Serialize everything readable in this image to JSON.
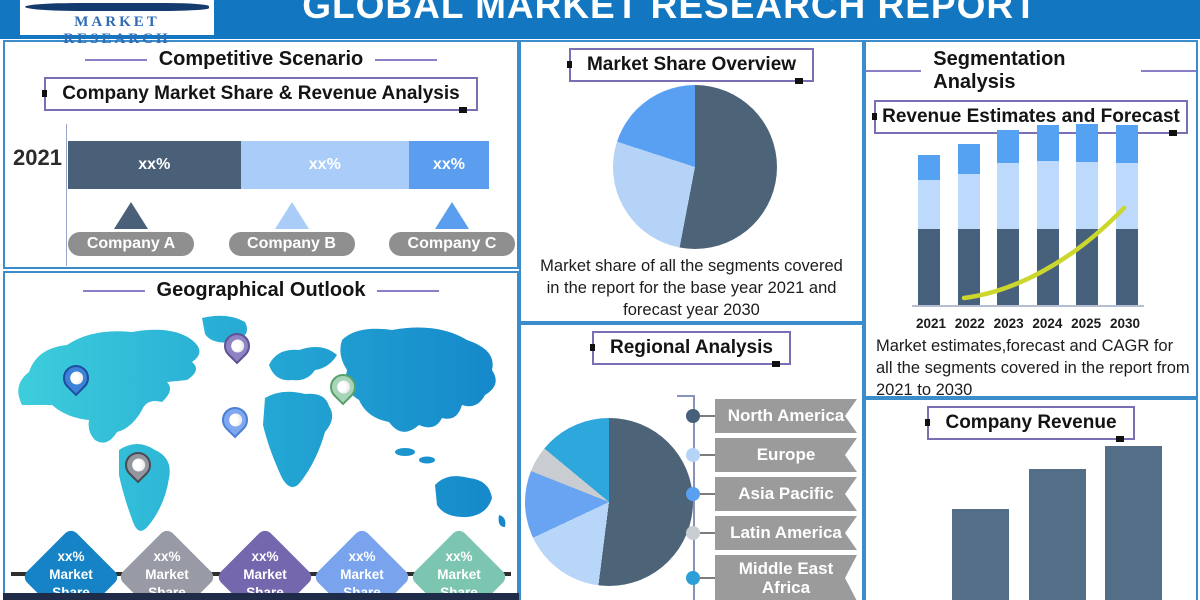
{
  "header": {
    "title": "GLOBAL MARKET RESEARCH REPORT",
    "logo_text": "MARKET RESEARCH"
  },
  "competitive": {
    "title": "Competitive Scenario",
    "subtitle": "Company Market Share & Revenue Analysis",
    "year": "2021",
    "segments": [
      {
        "share_label": "xx%",
        "company": "Company A",
        "color": "#4a5f78",
        "width_pct": 41
      },
      {
        "share_label": "xx%",
        "company": "Company B",
        "color": "#a9cdf8",
        "width_pct": 40
      },
      {
        "share_label": "xx%",
        "company": "Company C",
        "color": "#5b9ef0",
        "width_pct": 19
      }
    ]
  },
  "geographical": {
    "title": "Geographical Outlook",
    "pins": [
      {
        "name": "north-america-pin",
        "color": "#3b82d8",
        "border": "#1d4f9e"
      },
      {
        "name": "europe-pin",
        "color": "#9083c4",
        "border": "#5f5294"
      },
      {
        "name": "middle-east-pin",
        "color": "#7fa8f0",
        "border": "#4a7fd4"
      },
      {
        "name": "asia-pacific-pin",
        "color": "#a8d4b8",
        "border": "#57a06a"
      },
      {
        "name": "latin-america-pin",
        "color": "#9597a0",
        "border": "#4a4a52"
      }
    ],
    "badges": [
      {
        "value": "xx%",
        "label1": "Market",
        "label2": "Share",
        "color": "#1583c5"
      },
      {
        "value": "xx%",
        "label1": "Market",
        "label2": "Share",
        "color": "#989aa5"
      },
      {
        "value": "xx%",
        "label1": "Market",
        "label2": "Share",
        "color": "#7467ad"
      },
      {
        "value": "xx%",
        "label1": "Market",
        "label2": "Share",
        "color": "#7aa3ee"
      },
      {
        "value": "xx%",
        "label1": "Market",
        "label2": "Share",
        "color": "#7cc5b1"
      }
    ]
  },
  "market_share_overview": {
    "title": "Market Share Overview",
    "description": "Market share of all the segments covered in the report for the base year 2021 and forecast year 2030",
    "slices": [
      {
        "value": 53,
        "color": "#4d6378"
      },
      {
        "value": 27,
        "color": "#b5d3f6"
      },
      {
        "value": 20,
        "color": "#5aa0f2"
      }
    ]
  },
  "regional": {
    "title": "Regional Analysis",
    "regions": [
      {
        "label": "North America",
        "dot": "#46607a"
      },
      {
        "label": "Europe",
        "dot": "#b5d4f7"
      },
      {
        "label": "Asia Pacific",
        "dot": "#5aa0f2"
      },
      {
        "label": "Latin America",
        "dot": "#c8cdd2"
      },
      {
        "label": "Middle East Africa",
        "dot": "#2d9fd8"
      }
    ],
    "slices": [
      {
        "value": 52,
        "color": "#4d6378"
      },
      {
        "value": 16,
        "color": "#b8d6f8"
      },
      {
        "value": 13,
        "color": "#68a4f2"
      },
      {
        "value": 5,
        "color": "#c9cdd1"
      },
      {
        "value": 14,
        "color": "#2ea7dc"
      }
    ]
  },
  "segmentation": {
    "title": "Segmentation Analysis",
    "subtitle": "Revenue Estimates and Forecast",
    "description": "Market estimates,forecast and CAGR for all the segments covered in the report from 2021 to 2030",
    "years": [
      "2021",
      "2022",
      "2023",
      "2024",
      "2025",
      "2030"
    ],
    "bars": [
      {
        "dark": 76,
        "light": 49,
        "mid": 25
      },
      {
        "dark": 76,
        "light": 55,
        "mid": 30
      },
      {
        "dark": 76,
        "light": 66,
        "mid": 33
      },
      {
        "dark": 76,
        "light": 68,
        "mid": 36
      },
      {
        "dark": 76,
        "light": 67,
        "mid": 38
      },
      {
        "dark": 76,
        "light": 66,
        "mid": 38
      }
    ],
    "colors": {
      "dark": "#47617c",
      "light": "#bdd9fb",
      "mid": "#55a1f2",
      "curve": "#ccd72e"
    }
  },
  "company_revenue": {
    "title": "Company Revenue",
    "bars": [
      92,
      132,
      155
    ],
    "color": "#546e88"
  },
  "chart_data": [
    {
      "type": "bar",
      "subtype": "stacked-horizontal",
      "title": "Company Market Share & Revenue Analysis",
      "categories": [
        "2021"
      ],
      "series": [
        {
          "name": "Company A",
          "data_label": "xx%",
          "approx_width_pct": 41
        },
        {
          "name": "Company B",
          "data_label": "xx%",
          "approx_width_pct": 40
        },
        {
          "name": "Company C",
          "data_label": "xx%",
          "approx_width_pct": 19
        }
      ],
      "legend_position": "bottom"
    },
    {
      "type": "pie",
      "title": "Market Share Overview",
      "labels": [
        "",
        "",
        ""
      ],
      "values_pct_estimated": [
        53,
        27,
        20
      ],
      "start_angle": "12 o'clock, clockwise"
    },
    {
      "type": "pie",
      "title": "Regional Analysis",
      "labels": [
        "North America",
        "Europe",
        "Asia Pacific",
        "Latin America",
        "Middle East Africa"
      ],
      "values_pct_estimated": [
        52,
        16,
        13,
        5,
        14
      ],
      "legend_position": "right"
    },
    {
      "type": "bar",
      "subtype": "stacked-vertical",
      "title": "Revenue Estimates and Forecast",
      "categories": [
        "2021",
        "2022",
        "2023",
        "2024",
        "2025",
        "2030"
      ],
      "series": [
        {
          "name": "bottom-segment",
          "values": [
            76,
            76,
            76,
            76,
            76,
            76
          ]
        },
        {
          "name": "middle-segment",
          "values": [
            49,
            55,
            66,
            68,
            67,
            66
          ]
        },
        {
          "name": "top-segment",
          "values": [
            25,
            30,
            33,
            36,
            38,
            38
          ]
        }
      ],
      "units": "relative-height-px",
      "overlay": "rising CAGR curve from 2022 to 2030",
      "grid": false
    },
    {
      "type": "bar",
      "title": "Company Revenue",
      "categories": [
        "",
        "",
        ""
      ],
      "values": [
        92,
        132,
        155
      ],
      "units": "relative-height-px",
      "grid": false
    }
  ]
}
